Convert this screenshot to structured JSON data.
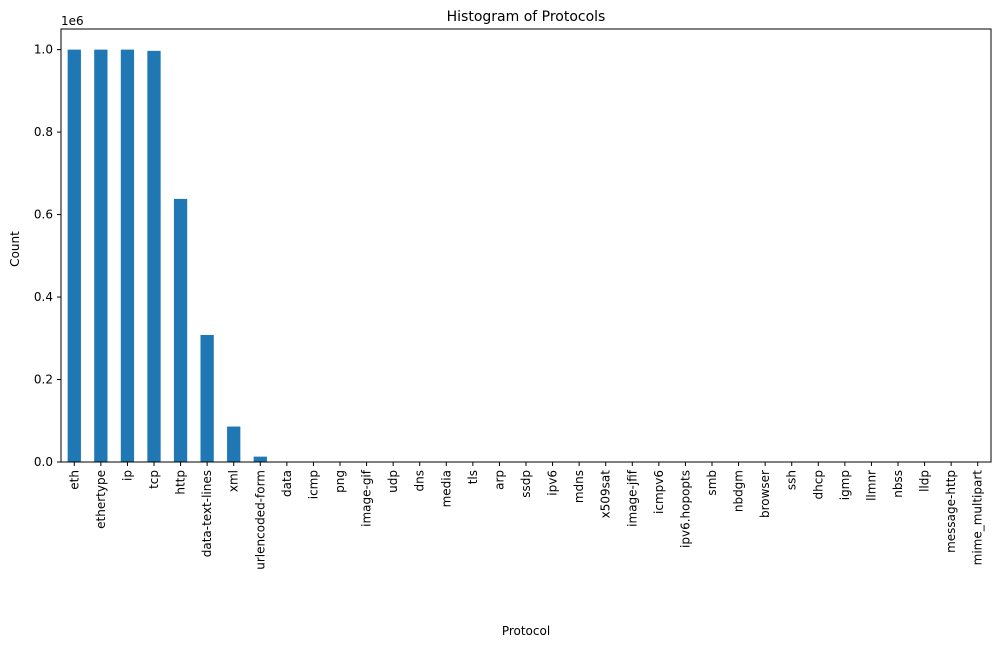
{
  "chart_data": {
    "type": "bar",
    "title": "Histogram of Protocols",
    "xlabel": "Protocol",
    "ylabel": "Count",
    "y_offset_label": "1e6",
    "ylim": [
      0,
      1.05
    ],
    "yticks": [
      0.0,
      0.2,
      0.4,
      0.6,
      0.8,
      1.0
    ],
    "ytick_labels": [
      "0.0",
      "0.2",
      "0.4",
      "0.6",
      "0.8",
      "1.0"
    ],
    "grid": false,
    "bar_color": "#1f77b4",
    "categories": [
      "eth",
      "ethertype",
      "ip",
      "tcp",
      "http",
      "data-text-lines",
      "xml",
      "urlencoded-form",
      "data",
      "icmp",
      "png",
      "image-gif",
      "udp",
      "dns",
      "media",
      "tls",
      "arp",
      "ssdp",
      "ipv6",
      "mdns",
      "x509sat",
      "image-jfif",
      "icmpv6",
      "ipv6.hopopts",
      "smb",
      "nbdgm",
      "browser",
      "ssh",
      "dhcp",
      "igmp",
      "llmnr",
      "nbss",
      "lldp",
      "message-http",
      "mime_multipart"
    ],
    "values": [
      1.0,
      1.0,
      1.0,
      0.997,
      0.638,
      0.308,
      0.086,
      0.013,
      0.0006,
      0.0004,
      0.0003,
      0.0003,
      0.0002,
      0.0002,
      0.0001,
      0.0001,
      0.0001,
      0.0001,
      5e-05,
      4e-05,
      3e-05,
      3e-05,
      2e-05,
      2e-05,
      1e-05,
      1e-05,
      1e-05,
      1e-05,
      5e-06,
      5e-06,
      4e-06,
      3e-06,
      2e-06,
      2e-06,
      1e-06
    ]
  }
}
